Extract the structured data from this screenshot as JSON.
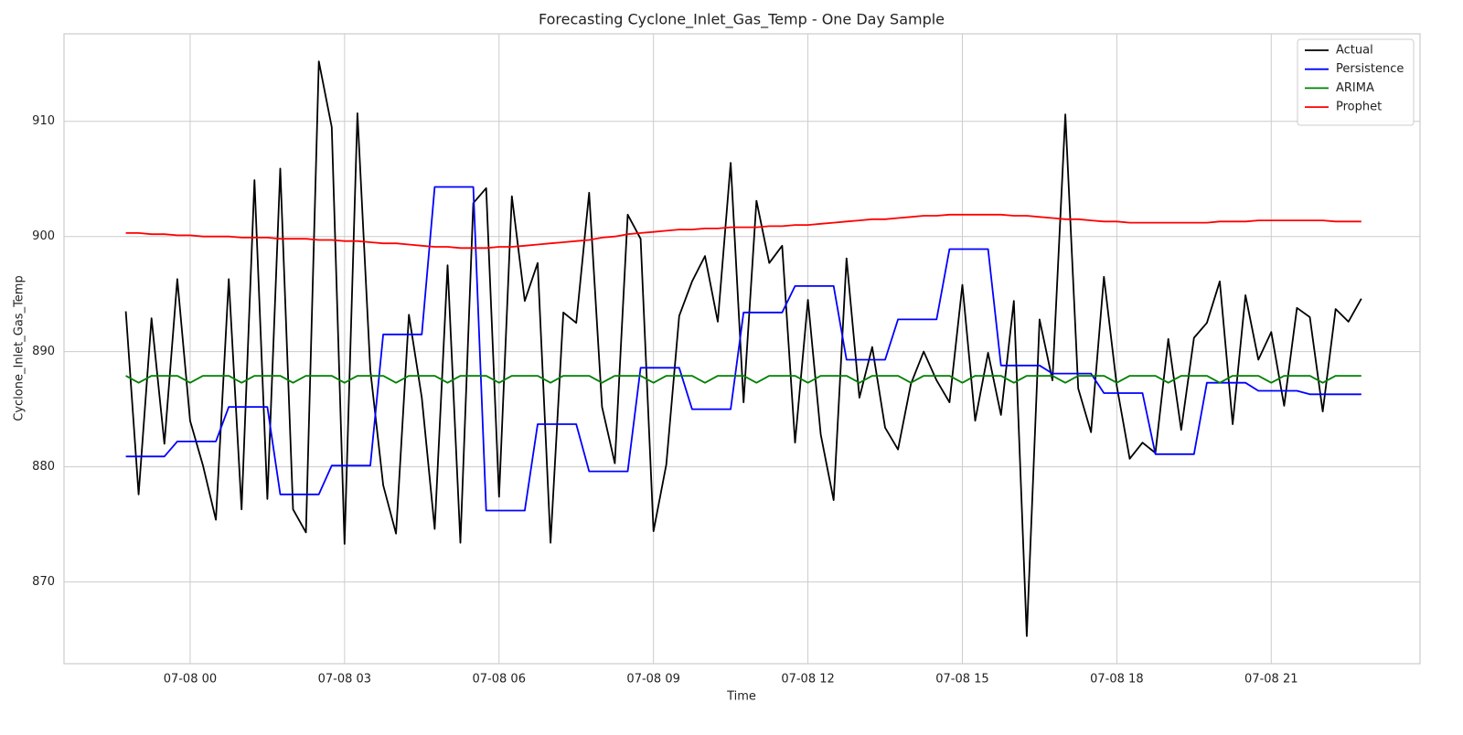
{
  "chart_data": {
    "type": "line",
    "title": "Forecasting Cyclone_Inlet_Gas_Temp - One Day Sample",
    "x_label": "Time",
    "y_label": "Cyclone_Inlet_Gas_Temp",
    "x": [
      -1.25,
      -1,
      -0.75,
      -0.5,
      -0.25,
      0,
      0.25,
      0.5,
      0.75,
      1,
      1.25,
      1.5,
      1.75,
      2,
      2.25,
      2.5,
      2.75,
      3,
      3.25,
      3.5,
      3.75,
      4,
      4.25,
      4.5,
      4.75,
      5,
      5.25,
      5.5,
      5.75,
      6,
      6.25,
      6.5,
      6.75,
      7,
      7.25,
      7.5,
      7.75,
      8,
      8.25,
      8.5,
      8.75,
      9,
      9.25,
      9.5,
      9.75,
      10,
      10.25,
      10.5,
      10.75,
      11,
      11.25,
      11.5,
      11.75,
      12,
      12.25,
      12.5,
      12.75,
      13,
      13.25,
      13.5,
      13.75,
      14,
      14.25,
      14.5,
      14.75,
      15,
      15.25,
      15.5,
      15.75,
      16,
      16.25,
      16.5,
      16.75,
      17,
      17.25,
      17.5,
      17.75,
      18,
      18.25,
      18.5,
      18.75,
      19,
      19.25,
      19.5,
      19.75,
      20,
      20.25,
      20.5,
      20.75,
      21,
      21.25,
      21.5,
      21.75,
      22,
      22.25,
      22.5,
      22.75
    ],
    "series": [
      {
        "name": "Actual",
        "color": "#000000",
        "values": [
          893.5,
          877.6,
          892.9,
          882,
          896.3,
          884,
          880.1,
          875.4,
          896.3,
          876.3,
          904.9,
          877.2,
          905.9,
          876.3,
          874.3,
          915.2,
          909.5,
          873.3,
          910.7,
          888.4,
          878.4,
          874.2,
          893.2,
          886,
          874.6,
          897.5,
          873.4,
          902.9,
          904.2,
          877.4,
          903.5,
          894.4,
          897.7,
          873.4,
          893.4,
          892.5,
          903.8,
          885.2,
          880.3,
          901.9,
          899.8,
          874.4,
          880.2,
          893.1,
          896.1,
          898.3,
          892.6,
          906.4,
          885.6,
          903.1,
          897.7,
          899.2,
          882.1,
          894.5,
          882.8,
          877.1,
          898.1,
          886,
          890.4,
          883.4,
          881.5,
          887.2,
          890,
          887.5,
          885.6,
          895.8,
          884,
          889.9,
          884.5,
          894.4,
          865.3,
          892.8,
          887.5,
          910.6,
          886.8,
          883,
          896.5,
          887,
          880.7,
          882.1,
          881.2,
          891.1,
          883.2,
          891.2,
          892.5,
          896.1,
          883.7,
          894.9,
          889.3,
          891.7,
          885.3,
          893.8,
          893,
          884.8,
          893.7,
          892.6,
          894.6
        ]
      },
      {
        "name": "Persistence",
        "color": "#0000ff",
        "values": [
          880.9,
          880.9,
          880.9,
          880.9,
          882.2,
          882.2,
          882.2,
          882.2,
          885.2,
          885.2,
          885.2,
          885.2,
          877.6,
          877.6,
          877.6,
          877.6,
          880.1,
          880.1,
          880.1,
          880.1,
          891.5,
          891.5,
          891.5,
          891.5,
          904.3,
          904.3,
          904.3,
          904.3,
          876.2,
          876.2,
          876.2,
          876.2,
          883.7,
          883.7,
          883.7,
          883.7,
          879.6,
          879.6,
          879.6,
          879.6,
          888.6,
          888.6,
          888.6,
          888.6,
          885,
          885,
          885,
          885,
          893.4,
          893.4,
          893.4,
          893.4,
          895.7,
          895.7,
          895.7,
          895.7,
          889.3,
          889.3,
          889.3,
          889.3,
          892.8,
          892.8,
          892.8,
          892.8,
          898.9,
          898.9,
          898.9,
          898.9,
          888.8,
          888.8,
          888.8,
          888.8,
          888.1,
          888.1,
          888.1,
          888.1,
          886.4,
          886.4,
          886.4,
          886.4,
          881.1,
          881.1,
          881.1,
          881.1,
          887.3,
          887.3,
          887.3,
          887.3,
          886.6,
          886.6,
          886.6,
          886.6,
          886.3,
          886.3,
          886.3,
          886.3,
          886.3
        ]
      },
      {
        "name": "ARIMA",
        "color": "#008000",
        "values": [
          887.9,
          887.3,
          887.9,
          887.9,
          887.9,
          887.3,
          887.9,
          887.9,
          887.9,
          887.3,
          887.9,
          887.9,
          887.9,
          887.3,
          887.9,
          887.9,
          887.9,
          887.3,
          887.9,
          887.9,
          887.9,
          887.3,
          887.9,
          887.9,
          887.9,
          887.3,
          887.9,
          887.9,
          887.9,
          887.3,
          887.9,
          887.9,
          887.9,
          887.3,
          887.9,
          887.9,
          887.9,
          887.3,
          887.9,
          887.9,
          887.9,
          887.3,
          887.9,
          887.9,
          887.9,
          887.3,
          887.9,
          887.9,
          887.9,
          887.3,
          887.9,
          887.9,
          887.9,
          887.3,
          887.9,
          887.9,
          887.9,
          887.3,
          887.9,
          887.9,
          887.9,
          887.3,
          887.9,
          887.9,
          887.9,
          887.3,
          887.9,
          887.9,
          887.9,
          887.3,
          887.9,
          887.9,
          887.9,
          887.3,
          887.9,
          887.9,
          887.9,
          887.3,
          887.9,
          887.9,
          887.9,
          887.3,
          887.9,
          887.9,
          887.9,
          887.3,
          887.9,
          887.9,
          887.9,
          887.3,
          887.9,
          887.9,
          887.9,
          887.3,
          887.9,
          887.9,
          887.9
        ]
      },
      {
        "name": "Prophet",
        "color": "#ff0000",
        "values": [
          900.3,
          900.3,
          900.2,
          900.2,
          900.1,
          900.1,
          900,
          900,
          900,
          899.9,
          899.9,
          899.9,
          899.8,
          899.8,
          899.8,
          899.7,
          899.7,
          899.6,
          899.6,
          899.5,
          899.4,
          899.4,
          899.3,
          899.2,
          899.1,
          899.1,
          899,
          899,
          899,
          899.1,
          899.1,
          899.2,
          899.3,
          899.4,
          899.5,
          899.6,
          899.7,
          899.9,
          900,
          900.2,
          900.3,
          900.4,
          900.5,
          900.6,
          900.6,
          900.7,
          900.7,
          900.8,
          900.8,
          900.8,
          900.9,
          900.9,
          901,
          901,
          901.1,
          901.2,
          901.3,
          901.4,
          901.5,
          901.5,
          901.6,
          901.7,
          901.8,
          901.8,
          901.9,
          901.9,
          901.9,
          901.9,
          901.9,
          901.8,
          901.8,
          901.7,
          901.6,
          901.5,
          901.5,
          901.4,
          901.3,
          901.3,
          901.2,
          901.2,
          901.2,
          901.2,
          901.2,
          901.2,
          901.2,
          901.3,
          901.3,
          901.3,
          901.4,
          901.4,
          901.4,
          901.4,
          901.4,
          901.4,
          901.3,
          901.3,
          901.3
        ]
      }
    ],
    "xlim": [
      -2.45,
      23.89
    ],
    "xticks": [
      {
        "value": 0,
        "label": "07-08 00"
      },
      {
        "value": 3,
        "label": "07-08 03"
      },
      {
        "value": 6,
        "label": "07-08 06"
      },
      {
        "value": 9,
        "label": "07-08 09"
      },
      {
        "value": 12,
        "label": "07-08 12"
      },
      {
        "value": 15,
        "label": "07-08 15"
      },
      {
        "value": 18,
        "label": "07-08 18"
      },
      {
        "value": 21,
        "label": "07-08 21"
      }
    ],
    "ylim": [
      862.9,
      917.6
    ],
    "yticks": [
      870,
      880,
      890,
      900,
      910
    ],
    "grid": true,
    "legend": "upper-right"
  }
}
